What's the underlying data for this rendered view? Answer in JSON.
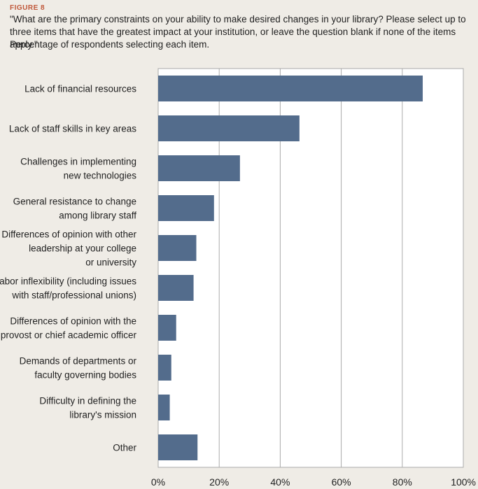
{
  "figure_label": "FIGURE 8",
  "question": "\"What are the primary constraints on your ability to make desired changes in your library? Please select up to three items that have the greatest impact at your institution, or leave the question blank if none of the items apply.\"",
  "subtitle": "Percentage of respondents selecting each item.",
  "colors": {
    "bar": "#536c8c",
    "background": "#efece6",
    "plot_bg": "#ffffff",
    "grid": "#aaaaaa",
    "figure_label": "#c0583a"
  },
  "chart_data": {
    "type": "bar",
    "orientation": "horizontal",
    "categories": [
      [
        "Lack of financial resources"
      ],
      [
        "Lack of staff skills in key areas"
      ],
      [
        "Challenges in implementing",
        "new technologies"
      ],
      [
        "General resistance to change",
        "among library staff"
      ],
      [
        "Differences of opinion with other",
        "leadership at your college",
        "or university"
      ],
      [
        "Labor inflexibility (including issues",
        "with staff/professional unions)"
      ],
      [
        "Differences of opinion with the",
        "provost or chief academic officer"
      ],
      [
        "Demands of departments or",
        "faculty governing bodies"
      ],
      [
        "Difficulty in defining the",
        "library's mission"
      ],
      [
        "Other"
      ]
    ],
    "values": [
      86.7,
      46.3,
      26.8,
      18.3,
      12.5,
      11.6,
      5.9,
      4.3,
      3.8,
      12.9
    ],
    "xlim": [
      0,
      100
    ],
    "xticks": [
      "0%",
      "20%",
      "40%",
      "60%",
      "80%",
      "100%"
    ],
    "grid": true,
    "xlabel": "",
    "ylabel": ""
  }
}
